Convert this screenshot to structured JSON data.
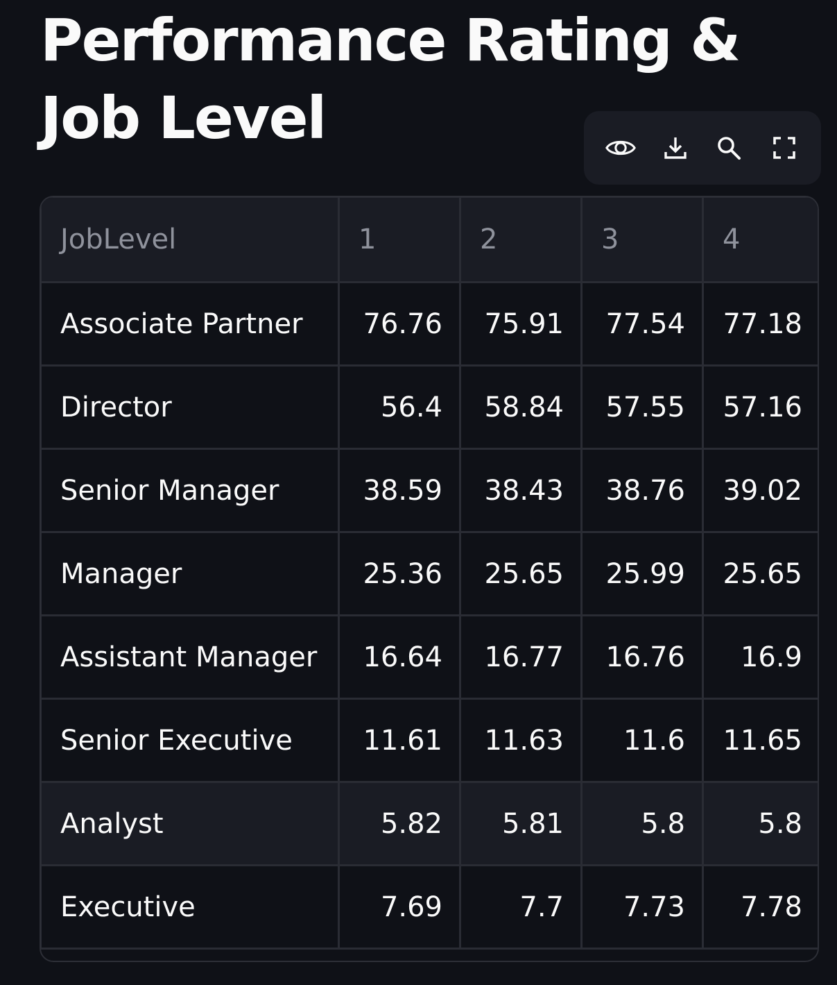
{
  "page": {
    "title": "Performance Rating & Job Level"
  },
  "toolbar": {
    "icons": [
      "eye-icon",
      "download-icon",
      "search-icon",
      "fullscreen-icon"
    ]
  },
  "table": {
    "columns": [
      "JobLevel",
      "1",
      "2",
      "3",
      "4"
    ],
    "rows": [
      {
        "label": "Associate Partner",
        "values": [
          "76.76",
          "75.91",
          "77.54",
          "77.18"
        ]
      },
      {
        "label": "Director",
        "values": [
          "56.4",
          "58.84",
          "57.55",
          "57.16"
        ]
      },
      {
        "label": "Senior Manager",
        "values": [
          "38.59",
          "38.43",
          "38.76",
          "39.02"
        ]
      },
      {
        "label": "Manager",
        "values": [
          "25.36",
          "25.65",
          "25.99",
          "25.65"
        ]
      },
      {
        "label": "Assistant Manager",
        "values": [
          "16.64",
          "16.77",
          "16.76",
          "16.9"
        ]
      },
      {
        "label": "Senior Executive",
        "values": [
          "11.61",
          "11.63",
          "11.6",
          "11.65"
        ]
      },
      {
        "label": "Analyst",
        "values": [
          "5.82",
          "5.81",
          "5.8",
          "5.8"
        ]
      },
      {
        "label": "Executive",
        "values": [
          "7.69",
          "7.7",
          "7.73",
          "7.78"
        ]
      }
    ]
  },
  "colors": {
    "background": "#0f1117",
    "header_background": "#1a1c24",
    "border": "#2a2c34",
    "text": "#fafafa",
    "header_text": "#8f929c"
  }
}
